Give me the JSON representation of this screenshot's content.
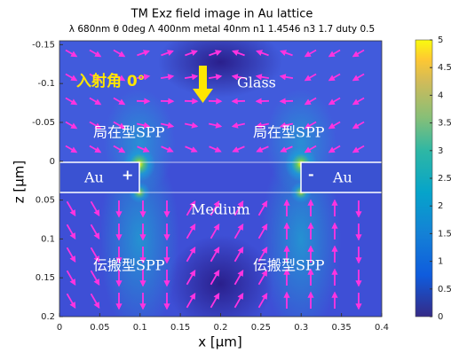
{
  "chart_data": {
    "type": "heatmap",
    "title": "TM   Exz field image   in Au lattice",
    "subtitle": "λ 680nm  θ 0deg  Λ 400nm metal 40nm  n1 1.4546 n3 1.7 duty 0.5",
    "x_label": "x [μm]",
    "y_label": "z [μm]",
    "xlim": [
      0,
      0.4
    ],
    "xticks": [
      0,
      0.05,
      0.1,
      0.15,
      0.2,
      0.25,
      0.3,
      0.35,
      0.4
    ],
    "ylim": [
      -0.155,
      0.2
    ],
    "y_reversed": true,
    "yticks": [
      -0.15,
      -0.1,
      -0.05,
      0,
      0.05,
      0.1,
      0.15,
      0.2
    ],
    "colorbar": {
      "lim": [
        0,
        5
      ],
      "ticks": [
        0,
        0.5,
        1,
        1.5,
        2,
        2.5,
        3,
        3.5,
        4,
        4.5,
        5
      ],
      "colormap": "parula"
    },
    "annotations": {
      "incidence": "入射角 0°",
      "glass": "Glass",
      "lspp_left": "局在型SPP",
      "lspp_right": "局在型SPP",
      "au_left": "Au",
      "plus": "+",
      "minus": "-",
      "au_right": "Au",
      "medium": "Medium",
      "pspp_left": "伝搬型SPP",
      "pspp_right": "伝搬型SPP"
    }
  }
}
